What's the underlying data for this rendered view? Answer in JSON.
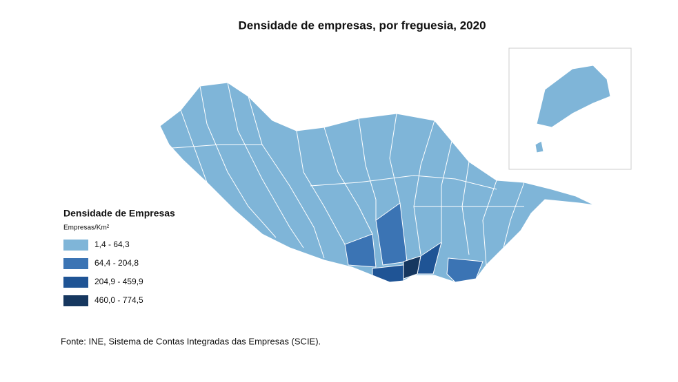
{
  "title": "Densidade de empresas, por freguesia, 2020",
  "legend": {
    "title": "Densidade de Empresas",
    "subtitle": "Empresas/Km²",
    "items": [
      {
        "label": "1,4 - 64,3",
        "color": "#7fb5d8"
      },
      {
        "label": "64,4 - 204,8",
        "color": "#3b74b4"
      },
      {
        "label": "204,9 - 459,9",
        "color": "#1f5495"
      },
      {
        "label": "460,0 - 774,5",
        "color": "#16375f"
      }
    ]
  },
  "source": "Fonte: INE, Sistema de Contas Integradas das Empresas (SCIE)."
}
